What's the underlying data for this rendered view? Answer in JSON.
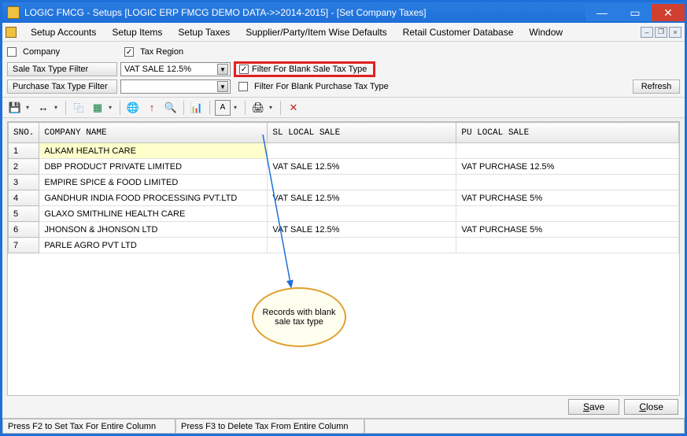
{
  "window": {
    "title": "LOGIC FMCG - Setups  [LOGIC ERP FMCG DEMO DATA->>2014-2015] - [Set Company Taxes]"
  },
  "menu": {
    "items": [
      "Setup Accounts",
      "Setup Items",
      "Setup Taxes",
      "Supplier/Party/Item Wise Defaults",
      "Retail Customer Database",
      "Window"
    ]
  },
  "filters": {
    "company_label": "Company",
    "taxregion_label": "Tax Region",
    "sale_filter_btn": "Sale Tax Type Filter",
    "sale_filter_value": "VAT SALE 12.5%",
    "blank_sale_label": "Filter For Blank Sale Tax Type",
    "purchase_filter_btn": "Purchase Tax Type Filter",
    "purchase_filter_value": "",
    "blank_purchase_label": "Filter For Blank Purchase Tax Type",
    "refresh_label": "Refresh"
  },
  "grid": {
    "columns": [
      "SNO.",
      "COMPANY NAME",
      "SL LOCAL SALE",
      "PU LOCAL SALE"
    ],
    "col_widths": [
      "34px",
      "290px",
      "240px",
      "auto"
    ],
    "rows": [
      {
        "sno": "1",
        "name": "ALKAM HEALTH CARE",
        "sl": "",
        "pu": "",
        "hl": true
      },
      {
        "sno": "2",
        "name": "DBP PRODUCT PRIVATE LIMITED",
        "sl": "VAT SALE 12.5%",
        "pu": "VAT PURCHASE 12.5%"
      },
      {
        "sno": "3",
        "name": "EMPIRE SPICE & FOOD LIMITED",
        "sl": "",
        "pu": ""
      },
      {
        "sno": "4",
        "name": "GANDHUR INDIA FOOD PROCESSING PVT.LTD",
        "sl": "VAT SALE 12.5%",
        "pu": "VAT PURCHASE 5%"
      },
      {
        "sno": "5",
        "name": "GLAXO SMITHLINE HEALTH CARE",
        "sl": "",
        "pu": ""
      },
      {
        "sno": "6",
        "name": "JHONSON & JHONSON LTD",
        "sl": "VAT SALE 12.5%",
        "pu": "VAT PURCHASE 5%"
      },
      {
        "sno": "7",
        "name": "PARLE AGRO PVT LTD",
        "sl": "",
        "pu": ""
      }
    ]
  },
  "callout": {
    "text": "Records with blank sale tax type",
    "arrow_color": "#1e6fd8",
    "bubble_border": "#e0a030",
    "bubble_bg": "#fffff0"
  },
  "buttons": {
    "save": "Save",
    "close": "Close"
  },
  "status": {
    "left": "Press F2 to Set Tax For Entire Column",
    "right": "Press F3 to Delete Tax From Entire Column"
  },
  "colors": {
    "accent": "#1e6fd8",
    "highlight_row": "#ffffcc",
    "red_border": "#e02020"
  }
}
